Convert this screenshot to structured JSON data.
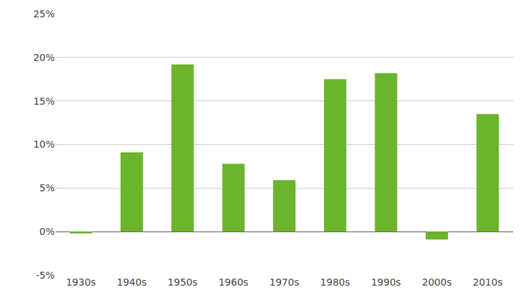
{
  "chart_data": {
    "type": "bar",
    "categories": [
      "1930s",
      "1940s",
      "1950s",
      "1960s",
      "1970s",
      "1980s",
      "1990s",
      "2000s",
      "2010s"
    ],
    "values": [
      -0.2,
      9.1,
      19.2,
      7.8,
      5.9,
      17.5,
      18.2,
      -0.9,
      13.5
    ],
    "color": "#6bb42b",
    "ylim": [
      -5,
      25
    ],
    "yticks": [
      {
        "value": -5,
        "label": "-5%"
      },
      {
        "value": 0,
        "label": "0%"
      },
      {
        "value": 5,
        "label": "5%"
      },
      {
        "value": 10,
        "label": "10%"
      },
      {
        "value": 15,
        "label": "15%"
      },
      {
        "value": 20,
        "label": "20%"
      },
      {
        "value": 25,
        "label": "25%"
      }
    ],
    "grid": true
  }
}
